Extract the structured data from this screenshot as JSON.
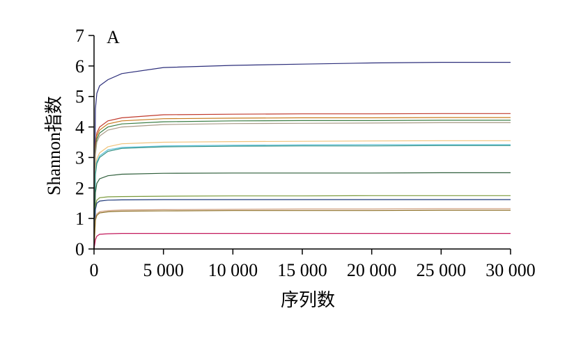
{
  "chart_data": {
    "type": "line",
    "panel_label": "A",
    "xlabel": "序列数",
    "ylabel": "Shannon指数",
    "xlim": [
      0,
      30000
    ],
    "ylim": [
      0,
      7
    ],
    "x_ticks": [
      0,
      5000,
      10000,
      15000,
      20000,
      25000,
      30000
    ],
    "x_tick_labels": [
      "0",
      "5 000",
      "10 000",
      "15 000",
      "20 000",
      "25 000",
      "30 000"
    ],
    "y_ticks": [
      0,
      1,
      2,
      3,
      4,
      5,
      6,
      7
    ],
    "y_tick_labels": [
      "0",
      "1",
      "2",
      "3",
      "4",
      "5",
      "6",
      "7"
    ],
    "grid": false,
    "legend": "none",
    "series": [
      {
        "color": "#2b2d7a",
        "x": [
          0,
          100,
          200,
          400,
          1000,
          2000,
          5000,
          10000,
          15000,
          20000,
          25000,
          30000
        ],
        "y": [
          0,
          4.6,
          5.1,
          5.35,
          5.55,
          5.75,
          5.95,
          6.02,
          6.06,
          6.1,
          6.12,
          6.12
        ]
      },
      {
        "color": "#c0392b",
        "x": [
          0,
          100,
          200,
          400,
          1000,
          2000,
          5000,
          10000,
          15000,
          20000,
          25000,
          30000
        ],
        "y": [
          0,
          3.4,
          3.8,
          4.0,
          4.2,
          4.3,
          4.4,
          4.42,
          4.43,
          4.43,
          4.44,
          4.44
        ]
      },
      {
        "color": "#c77a1e",
        "x": [
          0,
          100,
          200,
          400,
          1000,
          2000,
          5000,
          10000,
          15000,
          20000,
          25000,
          30000
        ],
        "y": [
          0,
          3.3,
          3.7,
          3.9,
          4.1,
          4.2,
          4.27,
          4.29,
          4.3,
          4.3,
          4.31,
          4.31
        ]
      },
      {
        "color": "#3a7d44",
        "x": [
          0,
          100,
          200,
          400,
          1000,
          2000,
          5000,
          10000,
          15000,
          20000,
          25000,
          30000
        ],
        "y": [
          0,
          3.2,
          3.6,
          3.8,
          4.0,
          4.1,
          4.17,
          4.2,
          4.21,
          4.21,
          4.22,
          4.22
        ]
      },
      {
        "color": "#a89a86",
        "x": [
          0,
          100,
          200,
          400,
          1000,
          2000,
          5000,
          10000,
          15000,
          20000,
          25000,
          30000
        ],
        "y": [
          0,
          3.1,
          3.5,
          3.7,
          3.9,
          4.0,
          4.08,
          4.11,
          4.12,
          4.13,
          4.14,
          4.14
        ]
      },
      {
        "color": "#f0c27a",
        "x": [
          0,
          100,
          200,
          400,
          1000,
          2000,
          5000,
          10000,
          15000,
          20000,
          25000,
          30000
        ],
        "y": [
          0,
          2.6,
          2.95,
          3.15,
          3.35,
          3.45,
          3.5,
          3.52,
          3.53,
          3.54,
          3.55,
          3.55
        ]
      },
      {
        "color": "#5bc0d8",
        "x": [
          0,
          100,
          200,
          400,
          1000,
          2000,
          5000,
          10000,
          15000,
          20000,
          25000,
          30000
        ],
        "y": [
          0,
          2.5,
          2.85,
          3.05,
          3.25,
          3.33,
          3.38,
          3.4,
          3.41,
          3.42,
          3.42,
          3.42
        ]
      },
      {
        "color": "#2f8f83",
        "x": [
          0,
          100,
          200,
          400,
          1000,
          2000,
          5000,
          10000,
          15000,
          20000,
          25000,
          30000
        ],
        "y": [
          0,
          2.45,
          2.8,
          3.0,
          3.2,
          3.3,
          3.35,
          3.37,
          3.38,
          3.38,
          3.39,
          3.39
        ]
      },
      {
        "color": "#2e5e3a",
        "x": [
          0,
          100,
          200,
          400,
          1000,
          2000,
          5000,
          10000,
          15000,
          20000,
          25000,
          30000
        ],
        "y": [
          0,
          1.85,
          2.15,
          2.3,
          2.4,
          2.45,
          2.48,
          2.49,
          2.49,
          2.49,
          2.5,
          2.5
        ]
      },
      {
        "color": "#7a9a3a",
        "x": [
          0,
          100,
          200,
          400,
          1000,
          2000,
          5000,
          10000,
          15000,
          20000,
          25000,
          30000
        ],
        "y": [
          0,
          1.4,
          1.6,
          1.68,
          1.71,
          1.72,
          1.73,
          1.74,
          1.74,
          1.75,
          1.75,
          1.75
        ]
      },
      {
        "color": "#1f3a7a",
        "x": [
          0,
          100,
          200,
          400,
          1000,
          2000,
          5000,
          10000,
          15000,
          20000,
          25000,
          30000
        ],
        "y": [
          0,
          1.3,
          1.5,
          1.57,
          1.6,
          1.61,
          1.62,
          1.62,
          1.62,
          1.62,
          1.62,
          1.62
        ]
      },
      {
        "color": "#d0a080",
        "x": [
          0,
          100,
          200,
          400,
          1000,
          2000,
          5000,
          10000,
          15000,
          20000,
          25000,
          30000
        ],
        "y": [
          0,
          1.0,
          1.15,
          1.22,
          1.26,
          1.28,
          1.29,
          1.3,
          1.31,
          1.31,
          1.32,
          1.32
        ]
      },
      {
        "color": "#8a6a1e",
        "x": [
          0,
          100,
          200,
          400,
          1000,
          2000,
          5000,
          10000,
          15000,
          20000,
          25000,
          30000
        ],
        "y": [
          0,
          0.95,
          1.1,
          1.18,
          1.22,
          1.24,
          1.25,
          1.26,
          1.26,
          1.26,
          1.27,
          1.27
        ]
      },
      {
        "color": "#c2185b",
        "x": [
          0,
          100,
          200,
          400,
          1000,
          2000,
          5000,
          10000,
          15000,
          20000,
          25000,
          30000
        ],
        "y": [
          0,
          0.3,
          0.42,
          0.48,
          0.5,
          0.51,
          0.51,
          0.51,
          0.51,
          0.51,
          0.51,
          0.51
        ]
      }
    ]
  }
}
